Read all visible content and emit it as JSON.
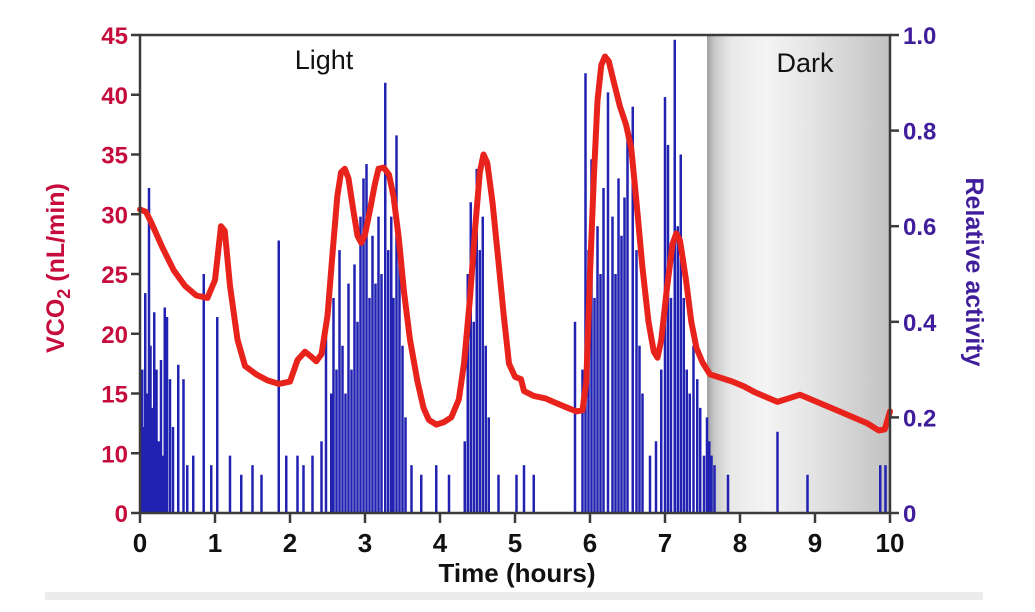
{
  "chart_data": {
    "type": "combo_bar_line",
    "title": "",
    "x_axis": {
      "label": "Time (hours)",
      "tick_labels": [
        "0",
        "1",
        "2",
        "3",
        "4",
        "5",
        "6",
        "7",
        "8",
        "9",
        "10"
      ],
      "range": [
        0,
        10
      ]
    },
    "left_axis": {
      "label": "VCO2 (nL/min)",
      "label_main": "VCO",
      "label_sub": "2",
      "label_rest": " (nL/min)",
      "tick_labels": [
        "45",
        "40",
        "35",
        "30",
        "25",
        "20",
        "15",
        "10",
        "0"
      ],
      "color": "#c60c3c",
      "scale_note": "ticks evenly spaced; bottom interval 10-to-0 drawn same width as the 5-unit intervals"
    },
    "right_axis": {
      "label": "Relative activity",
      "tick_labels": [
        "1.0",
        "0.8",
        "0.6",
        "0.4",
        "0.2",
        "0"
      ],
      "range": [
        0,
        1
      ],
      "color": "#3f1d9b"
    },
    "annotations": {
      "light": "Light",
      "dark": "Dark"
    },
    "phases": {
      "light_span_hours": [
        0,
        7.56
      ],
      "dark_span_hours": [
        7.56,
        10
      ],
      "dark_band_gradient": [
        [
          0,
          "#9f9f9f"
        ],
        [
          0.04,
          "#c9c9c9"
        ],
        [
          0.13,
          "#e9e9e9"
        ],
        [
          0.32,
          "#f4f4f4"
        ],
        [
          0.55,
          "#e6e6e6"
        ],
        [
          0.8,
          "#d2d2d2"
        ],
        [
          1,
          "#c2c2c2"
        ]
      ]
    },
    "frame_color": "#3b3b3b",
    "series": [
      {
        "name": "VCO2",
        "type": "line",
        "axis": "left",
        "color": "#e8231c",
        "points": [
          [
            0,
            30.4
          ],
          [
            0.08,
            30.2
          ],
          [
            0.15,
            29.3
          ],
          [
            0.3,
            27.2
          ],
          [
            0.45,
            25.3
          ],
          [
            0.6,
            24.0
          ],
          [
            0.75,
            23.2
          ],
          [
            0.9,
            23.0
          ],
          [
            1.0,
            24.5
          ],
          [
            1.08,
            29.0
          ],
          [
            1.13,
            28.6
          ],
          [
            1.2,
            24.0
          ],
          [
            1.3,
            19.5
          ],
          [
            1.4,
            17.3
          ],
          [
            1.55,
            16.6
          ],
          [
            1.7,
            16.1
          ],
          [
            1.85,
            15.8
          ],
          [
            2.0,
            16.0
          ],
          [
            2.1,
            17.8
          ],
          [
            2.2,
            18.5
          ],
          [
            2.28,
            18.1
          ],
          [
            2.35,
            17.7
          ],
          [
            2.42,
            18.3
          ],
          [
            2.5,
            21.5
          ],
          [
            2.57,
            27.0
          ],
          [
            2.63,
            31.5
          ],
          [
            2.68,
            33.5
          ],
          [
            2.73,
            33.8
          ],
          [
            2.78,
            33.0
          ],
          [
            2.84,
            30.5
          ],
          [
            2.9,
            28.2
          ],
          [
            2.95,
            27.6
          ],
          [
            3.0,
            28.3
          ],
          [
            3.07,
            30.5
          ],
          [
            3.13,
            32.5
          ],
          [
            3.18,
            33.8
          ],
          [
            3.25,
            33.9
          ],
          [
            3.32,
            33.3
          ],
          [
            3.38,
            31.5
          ],
          [
            3.45,
            28.0
          ],
          [
            3.52,
            23.5
          ],
          [
            3.6,
            19.5
          ],
          [
            3.7,
            16.0
          ],
          [
            3.78,
            13.8
          ],
          [
            3.85,
            12.8
          ],
          [
            3.95,
            12.4
          ],
          [
            4.05,
            12.6
          ],
          [
            4.15,
            13.0
          ],
          [
            4.25,
            14.5
          ],
          [
            4.32,
            17.5
          ],
          [
            4.4,
            23.0
          ],
          [
            4.47,
            29.0
          ],
          [
            4.53,
            33.5
          ],
          [
            4.58,
            35.0
          ],
          [
            4.63,
            34.3
          ],
          [
            4.7,
            31.0
          ],
          [
            4.78,
            26.0
          ],
          [
            4.85,
            21.5
          ],
          [
            4.92,
            17.5
          ],
          [
            5.0,
            16.4
          ],
          [
            5.08,
            16.2
          ],
          [
            5.12,
            15.2
          ],
          [
            5.25,
            14.8
          ],
          [
            5.4,
            14.6
          ],
          [
            5.55,
            14.2
          ],
          [
            5.7,
            13.8
          ],
          [
            5.82,
            13.5
          ],
          [
            5.9,
            13.6
          ],
          [
            5.95,
            16.0
          ],
          [
            6.0,
            25.0
          ],
          [
            6.05,
            33.0
          ],
          [
            6.1,
            39.5
          ],
          [
            6.15,
            42.5
          ],
          [
            6.2,
            43.2
          ],
          [
            6.25,
            42.8
          ],
          [
            6.32,
            41.0
          ],
          [
            6.4,
            39.0
          ],
          [
            6.48,
            37.5
          ],
          [
            6.55,
            35.5
          ],
          [
            6.62,
            31.0
          ],
          [
            6.7,
            25.5
          ],
          [
            6.78,
            21.0
          ],
          [
            6.85,
            18.5
          ],
          [
            6.9,
            18.0
          ],
          [
            6.95,
            19.5
          ],
          [
            7.02,
            23.5
          ],
          [
            7.1,
            27.5
          ],
          [
            7.15,
            28.4
          ],
          [
            7.2,
            27.8
          ],
          [
            7.28,
            24.5
          ],
          [
            7.35,
            21.0
          ],
          [
            7.42,
            18.8
          ],
          [
            7.5,
            17.6
          ],
          [
            7.6,
            16.6
          ],
          [
            7.75,
            16.3
          ],
          [
            7.9,
            16.0
          ],
          [
            8.05,
            15.6
          ],
          [
            8.2,
            15.1
          ],
          [
            8.35,
            14.7
          ],
          [
            8.5,
            14.3
          ],
          [
            8.65,
            14.6
          ],
          [
            8.8,
            14.9
          ],
          [
            8.95,
            14.5
          ],
          [
            9.1,
            14.1
          ],
          [
            9.25,
            13.7
          ],
          [
            9.4,
            13.3
          ],
          [
            9.55,
            12.9
          ],
          [
            9.7,
            12.5
          ],
          [
            9.85,
            11.9
          ],
          [
            9.93,
            12.0
          ],
          [
            10,
            13.5
          ]
        ]
      },
      {
        "name": "Relative activity",
        "type": "bar",
        "axis": "right",
        "color": "#2222b2",
        "points": [
          [
            0.03,
            0.3
          ],
          [
            0.05,
            0.18
          ],
          [
            0.07,
            0.46
          ],
          [
            0.09,
            0.25
          ],
          [
            0.12,
            0.68
          ],
          [
            0.14,
            0.35
          ],
          [
            0.16,
            0.22
          ],
          [
            0.19,
            0.42
          ],
          [
            0.22,
            0.3
          ],
          [
            0.25,
            0.15
          ],
          [
            0.28,
            0.32
          ],
          [
            0.31,
            0.12
          ],
          [
            0.33,
            0.43
          ],
          [
            0.36,
            0.41
          ],
          [
            0.4,
            0.28
          ],
          [
            0.44,
            0.18
          ],
          [
            0.51,
            0.31
          ],
          [
            0.58,
            0.28
          ],
          [
            0.63,
            0.1
          ],
          [
            0.71,
            0.12
          ],
          [
            0.85,
            0.5
          ],
          [
            0.95,
            0.1
          ],
          [
            1.03,
            0.41
          ],
          [
            1.2,
            0.12
          ],
          [
            1.35,
            0.08
          ],
          [
            1.5,
            0.1
          ],
          [
            1.62,
            0.08
          ],
          [
            1.85,
            0.57
          ],
          [
            1.95,
            0.12
          ],
          [
            2.1,
            0.12
          ],
          [
            2.18,
            0.1
          ],
          [
            2.3,
            0.12
          ],
          [
            2.42,
            0.15
          ],
          [
            2.48,
            0.42
          ],
          [
            2.55,
            0.25
          ],
          [
            2.58,
            0.45
          ],
          [
            2.62,
            0.3
          ],
          [
            2.66,
            0.55
          ],
          [
            2.7,
            0.35
          ],
          [
            2.74,
            0.25
          ],
          [
            2.78,
            0.48
          ],
          [
            2.82,
            0.3
          ],
          [
            2.86,
            0.52
          ],
          [
            2.9,
            0.4
          ],
          [
            2.94,
            0.62
          ],
          [
            2.98,
            0.7
          ],
          [
            3.02,
            0.73
          ],
          [
            3.06,
            0.45
          ],
          [
            3.1,
            0.58
          ],
          [
            3.14,
            0.48
          ],
          [
            3.18,
            0.62
          ],
          [
            3.22,
            0.5
          ],
          [
            3.27,
            0.9
          ],
          [
            3.31,
            0.55
          ],
          [
            3.35,
            0.62
          ],
          [
            3.38,
            0.45
          ],
          [
            3.42,
            0.79
          ],
          [
            3.46,
            0.55
          ],
          [
            3.5,
            0.35
          ],
          [
            3.54,
            0.2
          ],
          [
            3.62,
            0.1
          ],
          [
            3.75,
            0.08
          ],
          [
            3.95,
            0.1
          ],
          [
            4.12,
            0.08
          ],
          [
            4.33,
            0.15
          ],
          [
            4.37,
            0.5
          ],
          [
            4.41,
            0.65
          ],
          [
            4.45,
            0.4
          ],
          [
            4.49,
            0.72
          ],
          [
            4.53,
            0.55
          ],
          [
            4.57,
            0.62
          ],
          [
            4.61,
            0.35
          ],
          [
            4.65,
            0.2
          ],
          [
            4.78,
            0.08
          ],
          [
            5.02,
            0.08
          ],
          [
            5.12,
            0.1
          ],
          [
            5.25,
            0.08
          ],
          [
            5.8,
            0.4
          ],
          [
            5.9,
            0.3
          ],
          [
            5.94,
            0.92
          ],
          [
            5.98,
            0.55
          ],
          [
            6.02,
            0.74
          ],
          [
            6.06,
            0.45
          ],
          [
            6.1,
            0.6
          ],
          [
            6.14,
            0.5
          ],
          [
            6.18,
            0.68
          ],
          [
            6.24,
            0.88
          ],
          [
            6.3,
            0.62
          ],
          [
            6.34,
            0.5
          ],
          [
            6.38,
            0.7
          ],
          [
            6.42,
            0.58
          ],
          [
            6.46,
            0.66
          ],
          [
            6.5,
            0.8
          ],
          [
            6.57,
            0.85
          ],
          [
            6.62,
            0.55
          ],
          [
            6.66,
            0.35
          ],
          [
            6.7,
            0.25
          ],
          [
            6.8,
            0.12
          ],
          [
            6.88,
            0.15
          ],
          [
            6.95,
            0.3
          ],
          [
            7.0,
            0.87
          ],
          [
            7.04,
            0.77
          ],
          [
            7.08,
            0.45
          ],
          [
            7.13,
            0.99
          ],
          [
            7.17,
            0.6
          ],
          [
            7.21,
            0.75
          ],
          [
            7.25,
            0.45
          ],
          [
            7.29,
            0.3
          ],
          [
            7.33,
            0.25
          ],
          [
            7.38,
            0.35
          ],
          [
            7.43,
            0.28
          ],
          [
            7.47,
            0.22
          ],
          [
            7.52,
            0.12
          ],
          [
            7.56,
            0.2
          ],
          [
            7.59,
            0.15
          ],
          [
            7.62,
            0.12
          ],
          [
            7.66,
            0.1
          ],
          [
            7.84,
            0.08
          ],
          [
            8.5,
            0.17
          ],
          [
            8.9,
            0.08
          ],
          [
            9.87,
            0.1
          ],
          [
            9.94,
            0.1
          ]
        ]
      }
    ]
  }
}
